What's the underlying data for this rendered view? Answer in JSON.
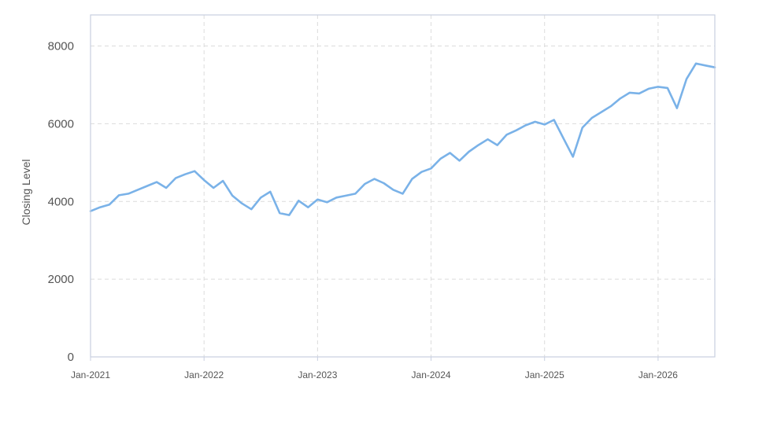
{
  "chart_data": {
    "type": "line",
    "title": "",
    "xlabel": "",
    "ylabel": "Closing Level",
    "ylim": [
      0,
      8800
    ],
    "xlim": [
      "2021-01",
      "2026-07"
    ],
    "grid": true,
    "legend": "none",
    "y_ticks": [
      {
        "value": 0,
        "label": "0"
      },
      {
        "value": 2000,
        "label": "2000"
      },
      {
        "value": 4000,
        "label": "4000"
      },
      {
        "value": 6000,
        "label": "6000"
      },
      {
        "value": 8000,
        "label": "8000"
      }
    ],
    "x_ticks": [
      {
        "value": "2021-01",
        "label": "Jan-2021"
      },
      {
        "value": "2022-01",
        "label": "Jan-2022"
      },
      {
        "value": "2023-01",
        "label": "Jan-2023"
      },
      {
        "value": "2024-01",
        "label": "Jan-2024"
      },
      {
        "value": "2025-01",
        "label": "Jan-2025"
      },
      {
        "value": "2026-01",
        "label": "Jan-2026"
      }
    ],
    "series": [
      {
        "color": "#7ab2e8",
        "points": [
          [
            "2021-01",
            3750
          ],
          [
            "2021-02",
            3850
          ],
          [
            "2021-03",
            3920
          ],
          [
            "2021-04",
            4160
          ],
          [
            "2021-05",
            4200
          ],
          [
            "2021-06",
            4300
          ],
          [
            "2021-07",
            4400
          ],
          [
            "2021-08",
            4500
          ],
          [
            "2021-09",
            4350
          ],
          [
            "2021-10",
            4600
          ],
          [
            "2021-11",
            4700
          ],
          [
            "2021-12",
            4780
          ],
          [
            "2022-01",
            4550
          ],
          [
            "2022-02",
            4350
          ],
          [
            "2022-03",
            4530
          ],
          [
            "2022-04",
            4150
          ],
          [
            "2022-05",
            3950
          ],
          [
            "2022-06",
            3800
          ],
          [
            "2022-07",
            4100
          ],
          [
            "2022-08",
            4250
          ],
          [
            "2022-09",
            3700
          ],
          [
            "2022-10",
            3650
          ],
          [
            "2022-11",
            4020
          ],
          [
            "2022-12",
            3850
          ],
          [
            "2023-01",
            4050
          ],
          [
            "2023-02",
            3980
          ],
          [
            "2023-03",
            4100
          ],
          [
            "2023-04",
            4150
          ],
          [
            "2023-05",
            4200
          ],
          [
            "2023-06",
            4450
          ],
          [
            "2023-07",
            4580
          ],
          [
            "2023-08",
            4470
          ],
          [
            "2023-09",
            4300
          ],
          [
            "2023-10",
            4200
          ],
          [
            "2023-11",
            4580
          ],
          [
            "2023-12",
            4760
          ],
          [
            "2024-01",
            4850
          ],
          [
            "2024-02",
            5100
          ],
          [
            "2024-03",
            5250
          ],
          [
            "2024-04",
            5050
          ],
          [
            "2024-05",
            5280
          ],
          [
            "2024-06",
            5450
          ],
          [
            "2024-07",
            5600
          ],
          [
            "2024-08",
            5450
          ],
          [
            "2024-09",
            5720
          ],
          [
            "2024-10",
            5830
          ],
          [
            "2024-11",
            5960
          ],
          [
            "2024-12",
            6050
          ],
          [
            "2025-01",
            5980
          ],
          [
            "2025-02",
            6100
          ],
          [
            "2025-03",
            5620
          ],
          [
            "2025-04",
            5150
          ],
          [
            "2025-05",
            5900
          ],
          [
            "2025-06",
            6150
          ],
          [
            "2025-07",
            6300
          ],
          [
            "2025-08",
            6450
          ],
          [
            "2025-09",
            6650
          ],
          [
            "2025-10",
            6800
          ],
          [
            "2025-11",
            6780
          ],
          [
            "2025-12",
            6900
          ],
          [
            "2026-01",
            6950
          ],
          [
            "2026-02",
            6920
          ],
          [
            "2026-03",
            6400
          ],
          [
            "2026-04",
            7150
          ],
          [
            "2026-05",
            7550
          ],
          [
            "2026-06",
            7500
          ],
          [
            "2026-07",
            7450
          ]
        ]
      }
    ]
  }
}
